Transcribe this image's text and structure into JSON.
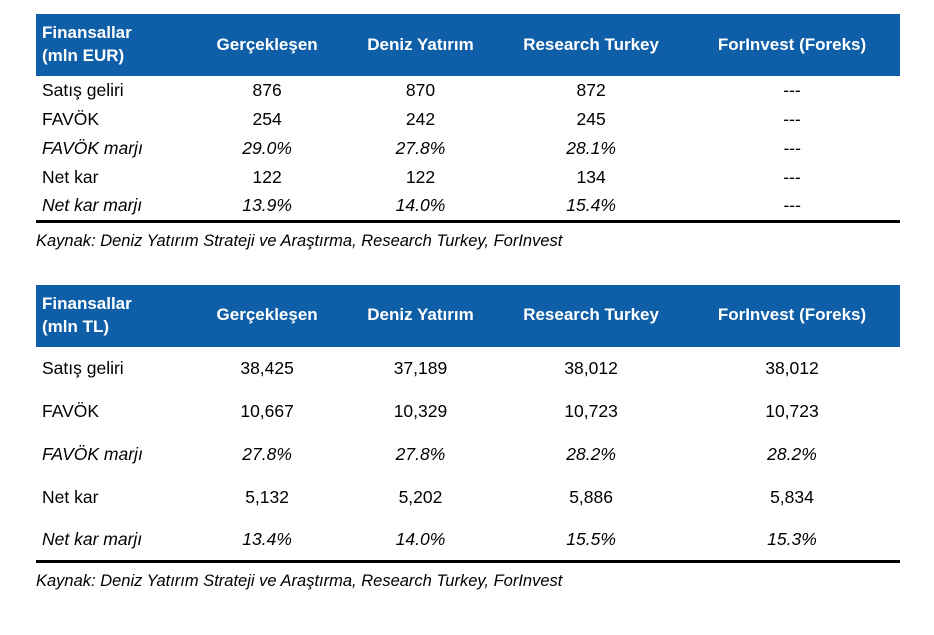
{
  "accent_color": "#0F5EA8",
  "header_text_color": "#FFFFFF",
  "tables": [
    {
      "id": "eur",
      "header": {
        "label_line1": "Finansallar",
        "label_line2": "(mln EUR)",
        "columns": [
          "Gerçekleşen",
          "Deniz Yatırım",
          "Research Turkey",
          "ForInvest (Foreks)"
        ]
      },
      "rows": [
        {
          "label": "Satış geliri",
          "italic": false,
          "values": [
            "876",
            "870",
            "872",
            "---"
          ]
        },
        {
          "label": "FAVÖK",
          "italic": false,
          "values": [
            "254",
            "242",
            "245",
            "---"
          ]
        },
        {
          "label": "FAVÖK marjı",
          "italic": true,
          "values": [
            "29.0%",
            "27.8%",
            "28.1%",
            "---"
          ]
        },
        {
          "label": "Net kar",
          "italic": false,
          "values": [
            "122",
            "122",
            "134",
            "---"
          ]
        },
        {
          "label": "Net kar marjı",
          "italic": true,
          "values": [
            "13.9%",
            "14.0%",
            "15.4%",
            "---"
          ]
        }
      ],
      "source": "Kaynak: Deniz Yatırım Strateji ve Araştırma, Research Turkey, ForInvest"
    },
    {
      "id": "tl",
      "header": {
        "label_line1": "Finansallar",
        "label_line2": "(mln TL)",
        "columns": [
          "Gerçekleşen",
          "Deniz Yatırım",
          "Research Turkey",
          "ForInvest (Foreks)"
        ]
      },
      "rows": [
        {
          "label": "Satış geliri",
          "italic": false,
          "values": [
            "38,425",
            "37,189",
            "38,012",
            "38,012"
          ]
        },
        {
          "label": "FAVÖK",
          "italic": false,
          "values": [
            "10,667",
            "10,329",
            "10,723",
            "10,723"
          ]
        },
        {
          "label": "FAVÖK marjı",
          "italic": true,
          "values": [
            "27.8%",
            "27.8%",
            "28.2%",
            "28.2%"
          ]
        },
        {
          "label": "Net kar",
          "italic": false,
          "values": [
            "5,132",
            "5,202",
            "5,886",
            "5,834"
          ]
        },
        {
          "label": "Net kar marjı",
          "italic": true,
          "values": [
            "13.4%",
            "14.0%",
            "15.5%",
            "15.3%"
          ]
        }
      ],
      "source": "Kaynak: Deniz Yatırım Strateji ve Araştırma, Research Turkey, ForInvest"
    }
  ]
}
